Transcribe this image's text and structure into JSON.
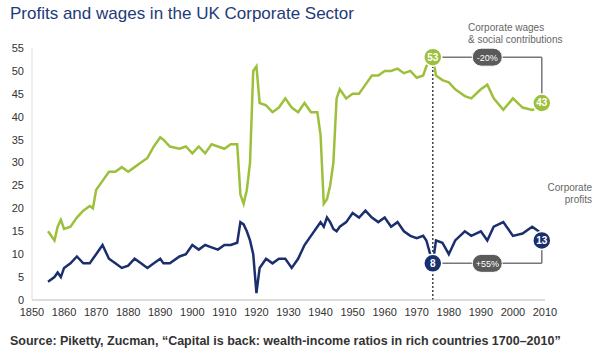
{
  "chart_data": {
    "type": "line",
    "title": "Profits and wages in the UK Corporate Sector",
    "source": "Source: Piketty, Zucman, “Capital is back: wealth-income ratios in rich countries 1700–2010”",
    "x": [
      1855,
      1857,
      1858,
      1859,
      1860,
      1862,
      1864,
      1866,
      1868,
      1869,
      1870,
      1872,
      1874,
      1876,
      1878,
      1880,
      1882,
      1884,
      1886,
      1888,
      1890,
      1891,
      1893,
      1896,
      1898,
      1900,
      1902,
      1904,
      1906,
      1908,
      1910,
      1912,
      1914,
      1915,
      1916,
      1917,
      1918,
      1919,
      1920,
      1921,
      1923,
      1925,
      1927,
      1929,
      1931,
      1933,
      1935,
      1937,
      1939,
      1940,
      1941,
      1942,
      1943,
      1944,
      1945,
      1946,
      1948,
      1950,
      1952,
      1954,
      1956,
      1958,
      1960,
      1962,
      1964,
      1966,
      1968,
      1970,
      1972,
      1973,
      1975,
      1976,
      1978,
      1980,
      1982,
      1985,
      1987,
      1990,
      1992,
      1994,
      1997,
      2000,
      2003,
      2006,
      2008,
      2009,
      2010
    ],
    "xlim": [
      1850,
      2010
    ],
    "xticks": [
      1850,
      1860,
      1870,
      1880,
      1890,
      1900,
      1910,
      1920,
      1930,
      1940,
      1950,
      1960,
      1970,
      1980,
      1990,
      2000,
      2010
    ],
    "ylim": [
      0,
      55
    ],
    "yticks": [
      0,
      5,
      10,
      15,
      20,
      25,
      30,
      35,
      40,
      45,
      50,
      55
    ],
    "series": [
      {
        "name": "Corporate wages & social contributions",
        "color": "#9dc03c",
        "values": [
          15,
          13,
          16,
          17.5,
          15.5,
          16,
          18,
          19.5,
          20.5,
          20,
          24,
          26,
          28,
          28,
          29,
          28,
          29,
          30,
          31,
          33.5,
          35.5,
          35,
          33.5,
          33,
          33.5,
          32,
          33.5,
          32,
          34,
          33.5,
          33,
          34,
          34,
          23,
          21,
          24,
          30,
          50,
          51,
          43,
          42.5,
          41,
          42,
          44,
          42,
          41,
          43,
          41,
          41,
          36,
          21,
          22,
          25,
          30,
          44,
          46,
          44,
          45,
          45,
          47,
          49,
          49,
          50,
          50,
          50.5,
          49.5,
          50,
          48.5,
          49,
          51,
          53,
          49,
          48,
          47.5,
          46,
          44.5,
          44,
          46,
          47,
          44,
          41.5,
          44,
          42,
          41.5,
          42,
          43,
          42.5
        ]
      },
      {
        "name": "Corporate profits",
        "color": "#1b2f6e",
        "values": [
          4,
          5,
          6,
          5,
          7,
          8,
          9.5,
          8,
          8,
          9,
          10,
          12,
          9,
          8,
          7,
          7.5,
          9,
          8,
          7,
          8,
          9,
          8,
          8,
          9.5,
          10,
          12,
          11,
          12,
          11.5,
          11,
          12,
          12,
          12.5,
          17,
          16.5,
          15,
          13,
          10,
          1.5,
          7,
          9,
          8,
          9,
          9,
          7,
          9,
          12,
          14,
          16,
          17,
          16,
          18,
          17,
          15.5,
          15,
          16,
          17,
          19,
          18,
          19.5,
          18,
          17,
          18,
          16,
          17,
          15,
          14,
          13.5,
          14,
          13,
          8,
          13,
          12.5,
          10,
          13,
          15,
          14,
          15,
          13,
          16,
          17,
          14,
          14.5,
          16,
          15,
          13,
          12.5
        ]
      }
    ],
    "reference_line": {
      "x": 1975
    },
    "changes": [
      {
        "from": {
          "x": 1975,
          "y": 53,
          "label": "53"
        },
        "to": {
          "x": 2009,
          "y": 43,
          "label": "43"
        },
        "label": "-20%",
        "color": "#9dc03c"
      },
      {
        "from": {
          "x": 1975,
          "y": 8,
          "label": "8"
        },
        "to": {
          "x": 2009,
          "y": 13,
          "label": "13"
        },
        "label": "+55%",
        "color": "#1b2f6e"
      }
    ]
  }
}
